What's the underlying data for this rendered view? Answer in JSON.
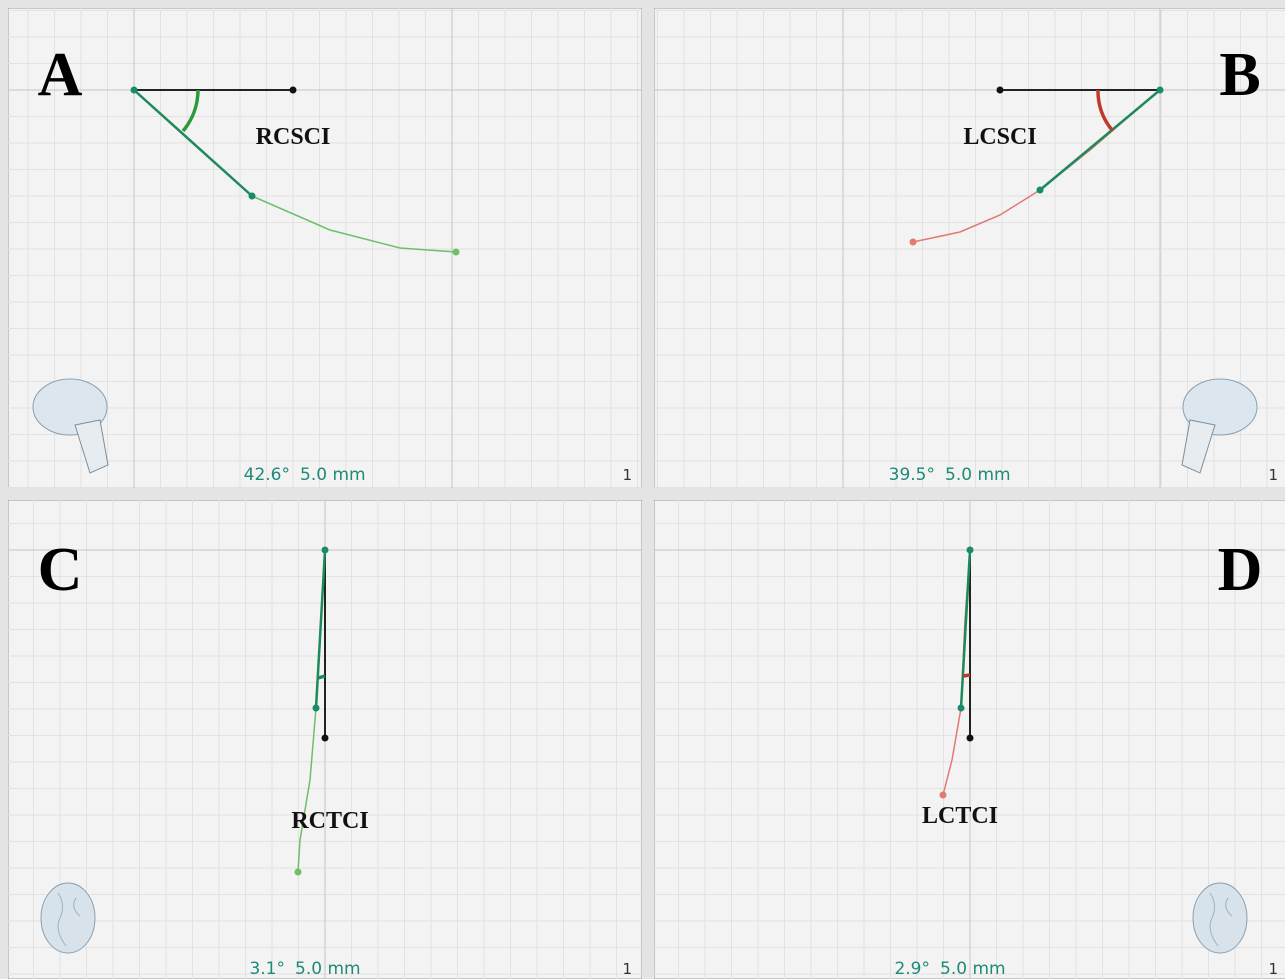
{
  "panels": [
    {
      "letter": "A",
      "label": "RCSCI",
      "angle": "42.6°",
      "distance": "5.0 mm",
      "index": "1"
    },
    {
      "letter": "B",
      "label": "LCSCI",
      "angle": "39.5°",
      "distance": "5.0 mm",
      "index": "1"
    },
    {
      "letter": "C",
      "label": "RCTCI",
      "angle": "3.1°",
      "distance": "5.0 mm",
      "index": "1"
    },
    {
      "letter": "D",
      "label": "LCTCI",
      "angle": "2.9°",
      "distance": "5.0 mm",
      "index": "1"
    }
  ]
}
